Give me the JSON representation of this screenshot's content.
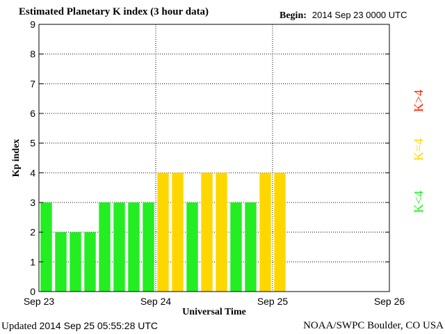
{
  "header": {
    "title": "Estimated Planetary K index (3 hour data)",
    "begin_label": "Begin:",
    "begin_value": "2014 Sep 23 0000 UTC"
  },
  "footer": {
    "updated_label": "Updated",
    "updated_value": "2014 Sep 25 05:55:28 UTC",
    "credit": "NOAA/SWPC Boulder, CO USA"
  },
  "legend": [
    {
      "label": "K>4",
      "color": "#ff2000"
    },
    {
      "label": "K=4",
      "color": "#ffd700"
    },
    {
      "label": "K<4",
      "color": "#22ee22"
    }
  ],
  "chart_data": {
    "type": "bar",
    "title": "Estimated Planetary K index (3 hour data)",
    "xlabel": "Universal Time",
    "ylabel": "Kp index",
    "ylim": [
      0,
      9
    ],
    "yticks": [
      0,
      1,
      2,
      3,
      4,
      5,
      6,
      7,
      8,
      9
    ],
    "xlim_days": [
      0,
      3
    ],
    "xtick_labels": [
      "Sep 23",
      "Sep 24",
      "Sep 25",
      "Sep 26"
    ],
    "bar_interval_hours": 3,
    "grid": true,
    "legend_position": "right",
    "series": [
      {
        "values": [
          3,
          2,
          2,
          2,
          3,
          3,
          3,
          3,
          4,
          4,
          3,
          4,
          4,
          3,
          3,
          4,
          4
        ]
      }
    ],
    "colors": {
      "below": "#22ee22",
      "equal": "#ffd700",
      "above": "#ff2000"
    }
  }
}
